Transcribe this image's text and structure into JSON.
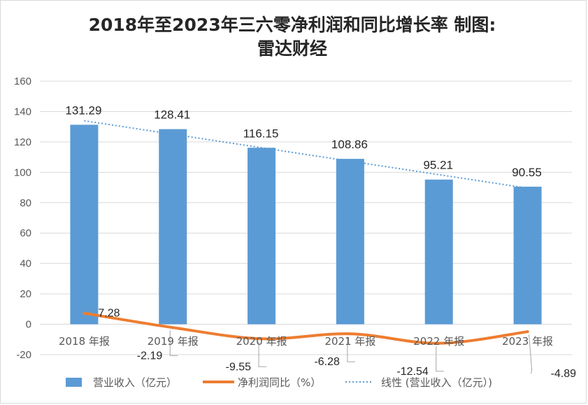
{
  "chart_data": {
    "type": "bar",
    "title_line1": "2018年至2023年三六零净利润和同比增长率 制图:",
    "title_line2": "雷达财经",
    "categories": [
      "2018 年报",
      "2019 年报",
      "2020 年报",
      "2021 年报",
      "2022 年报",
      "2023 年报"
    ],
    "y_ticks": [
      "160",
      "140",
      "120",
      "100",
      "80",
      "60",
      "40",
      "20",
      "0",
      "-20"
    ],
    "ylim": [
      -20,
      160
    ],
    "grid": true,
    "legend_position": "bottom",
    "series": [
      {
        "name": "营业收入（亿元）",
        "type": "bar",
        "values": [
          131.29,
          128.41,
          116.15,
          108.86,
          95.21,
          90.55
        ],
        "labels": [
          "131.29",
          "128.41",
          "116.15",
          "108.86",
          "95.21",
          "90.55"
        ],
        "color": "#5b9bd5"
      },
      {
        "name": "净利润同比（%）",
        "type": "line",
        "values": [
          7.28,
          -2.19,
          -9.55,
          -6.28,
          -12.54,
          -4.89
        ],
        "labels": [
          "7.28",
          "-2.19",
          "-9.55",
          "-6.28",
          "-12.54",
          "-4.89"
        ],
        "color": "#ed7d31"
      }
    ],
    "trendline": {
      "name": "线性 (营业收入（亿元）)",
      "type": "linear",
      "color": "#5b9bd5"
    }
  }
}
